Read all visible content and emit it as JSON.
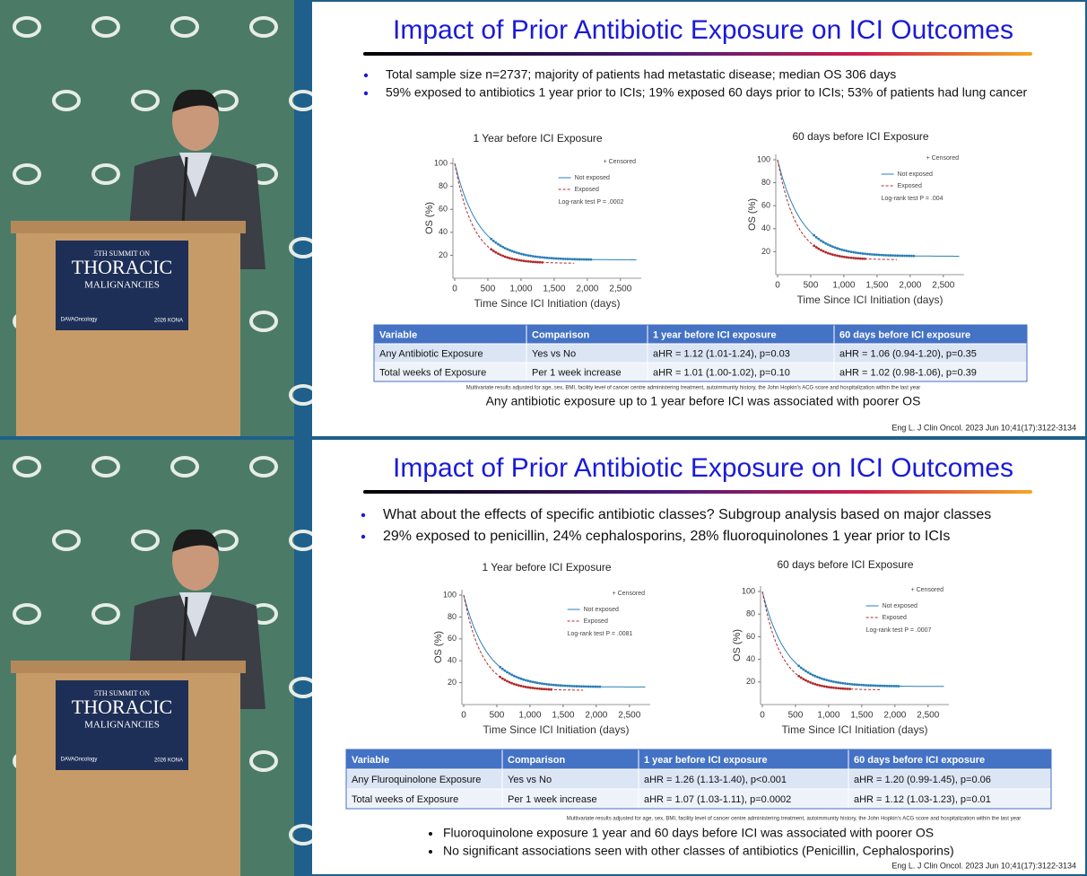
{
  "panels": [
    {
      "video": {
        "sign": {
          "line1": "5TH SUMMIT ON",
          "line2": "THORACIC",
          "line3": "MALIGNANCIES",
          "sponsor": "DAVAOncology",
          "event": "2026 KONA"
        }
      },
      "slide": {
        "title": "Impact of Prior Antibiotic Exposure on ICI Outcomes",
        "bullets": [
          "Total sample size n=2737; majority of patients had metastatic disease; median OS 306 days",
          "59% exposed to antibiotics 1 year prior to ICIs; 19% exposed 60 days prior to ICIs; 53% of patients had lung cancer"
        ],
        "charts": [
          {
            "title": "1 Year before ICI Exposure",
            "y_label": "OS (%)",
            "x_label": "Time Since ICI Initiation (days)",
            "yticks": [
              20,
              40,
              60,
              80,
              100
            ],
            "xticks": [
              0,
              500,
              {
                "value": 1000,
                "label": "1,000"
              },
              {
                "value": 1500,
                "label": "1,500"
              },
              {
                "value": 2000,
                "label": "2,000"
              },
              {
                "value": 2500,
                "label": "2,500"
              }
            ],
            "censored": "+ Censored",
            "legend": [
              "Not exposed",
              "Exposed"
            ],
            "test": "Log-rank test P = .0002"
          },
          {
            "title": "60 days before ICI Exposure",
            "y_label": "OS (%)",
            "x_label": "Time Since ICI Initiation (days)",
            "yticks": [
              20,
              40,
              60,
              80,
              100
            ],
            "xticks": [
              0,
              500,
              {
                "value": 1000,
                "label": "1,000"
              },
              {
                "value": 1500,
                "label": "1,500"
              },
              {
                "value": 2000,
                "label": "2,000"
              },
              {
                "value": 2500,
                "label": "2,500"
              }
            ],
            "censored": "+ Censored",
            "legend": [
              "Not exposed",
              "Exposed"
            ],
            "test": "Log-rank test P = .004"
          }
        ],
        "table": {
          "header": [
            "Variable",
            "Comparison",
            "1 year before ICI exposure",
            "60 days before ICI exposure"
          ],
          "rows": [
            [
              "Any Antibiotic Exposure",
              "Yes vs No",
              "aHR = 1.12 (1.01-1.24), p=0.03",
              "aHR = 1.06 (0.94-1.20), p=0.35"
            ],
            [
              "Total weeks of Exposure",
              "Per 1 week increase",
              "aHR = 1.01 (1.00-1.02), p=0.10",
              "aHR = 1.02 (0.98-1.06), p=0.39"
            ]
          ]
        },
        "footnote": "Multivariate results adjusted for age, sex, BMI, facility level of cancer centre administering treatment, autoimmunity history, the John Hopkin's ACG score and hospitalization within the last year",
        "conclusion": "Any antibiotic exposure up to 1 year before ICI was associated with poorer OS",
        "citation": "Eng L. J Clin Oncol. 2023 Jun 10;41(17):3122-3134"
      }
    },
    {
      "video": {
        "sign": {
          "line1": "5TH SUMMIT ON",
          "line2": "THORACIC",
          "line3": "MALIGNANCIES",
          "sponsor": "DAVAOncology",
          "event": "2026 KONA"
        }
      },
      "slide": {
        "title": "Impact of Prior Antibiotic Exposure on ICI Outcomes",
        "bullets": [
          "What about the effects of specific antibiotic classes? Subgroup analysis based on major classes",
          "29% exposed to penicillin, 24% cephalosporins, 28% fluoroquinolones 1 year prior to ICIs"
        ],
        "charts": [
          {
            "title": "1 Year before ICI Exposure",
            "y_label": "OS (%)",
            "x_label": "Time Since ICI Initiation (days)",
            "yticks": [
              20,
              40,
              60,
              80,
              100
            ],
            "xticks": [
              0,
              500,
              {
                "value": 1000,
                "label": "1,000"
              },
              {
                "value": 1500,
                "label": "1,500"
              },
              {
                "value": 2000,
                "label": "2,000"
              },
              {
                "value": 2500,
                "label": "2,500"
              }
            ],
            "censored": "+ Censored",
            "legend": [
              "Not exposed",
              "Exposed"
            ],
            "test": "Log-rank test P = .0081"
          },
          {
            "title": "60 days before ICI Exposure",
            "y_label": "OS (%)",
            "x_label": "Time Since ICI Initiation (days)",
            "yticks": [
              20,
              40,
              60,
              80,
              100
            ],
            "xticks": [
              0,
              500,
              {
                "value": 1000,
                "label": "1,000"
              },
              {
                "value": 1500,
                "label": "1,500"
              },
              {
                "value": 2000,
                "label": "2,000"
              },
              {
                "value": 2500,
                "label": "2,500"
              }
            ],
            "censored": "+ Censored",
            "legend": [
              "Not exposed",
              "Exposed"
            ],
            "test": "Log-rank test P = .0007"
          }
        ],
        "table": {
          "header": [
            "Variable",
            "Comparison",
            "1 year before ICI exposure",
            "60 days before ICI exposure"
          ],
          "rows": [
            [
              "Any Fluroquinolone Exposure",
              "Yes vs No",
              "aHR = 1.26 (1.13-1.40), p<0.001",
              "aHR = 1.20 (0.99-1.45), p=0.06"
            ],
            [
              "Total weeks of Exposure",
              "Per 1 week increase",
              "aHR = 1.07 (1.03-1.11), p=0.0002",
              "aHR = 1.12 (1.03-1.23), p=0.01"
            ]
          ]
        },
        "footnote": "Multivariate results adjusted for age, sex, BMI, facility level of cancer centre administering treatment, autoimmunity history, the John Hopkin's ACG score and hospitalization within the last year",
        "conclusion_bullets": [
          "Fluoroquinolone exposure 1 year and 60 days before ICI was associated with poorer OS",
          "No significant associations seen with other classes of antibiotics (Penicillin, Cephalosporins)"
        ],
        "citation": "Eng L. J Clin Oncol. 2023 Jun 10;41(17):3122-3134"
      }
    }
  ]
}
